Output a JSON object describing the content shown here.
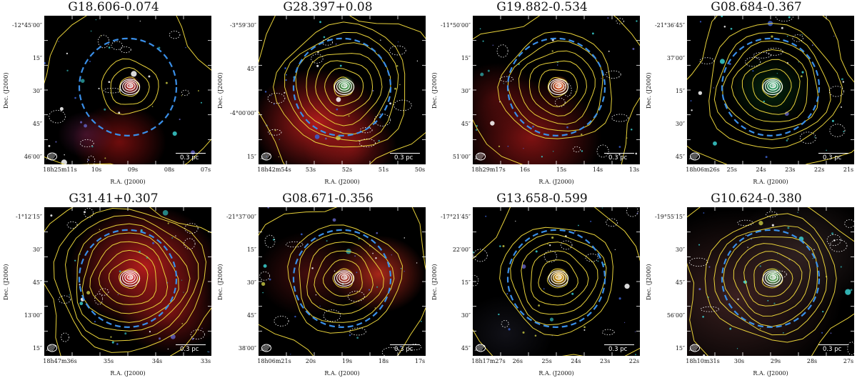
{
  "figure": {
    "dec_axis_label": "Dec. (J2000)",
    "ra_axis_label": "R.A. (J2000)",
    "scale_label": "0.3 pc",
    "colors": {
      "contour_yellow": "#e8d23a",
      "contour_white": "#ffffff",
      "circle_blue": "#3a8fe8",
      "frame": "#ffffff"
    }
  },
  "panels": [
    {
      "title": "G18.606-0.074",
      "dec_ticks": [
        "-12°45′00″",
        "15″",
        "30″",
        "45″",
        "46′00″"
      ],
      "ra_ticks": [
        "18h25m11s",
        "10s",
        "09s",
        "08s",
        "07s"
      ],
      "bg": "red-south"
    },
    {
      "title": "G28.397+0.08",
      "dec_ticks": [
        "-3°59′30″",
        "45″",
        "-4°00′00″",
        "15″"
      ],
      "ra_ticks": [
        "18h42m54s",
        "53s",
        "52s",
        "51s",
        "50s"
      ],
      "bg": "red-south-bright"
    },
    {
      "title": "G19.882-0.534",
      "dec_ticks": [
        "-11°50′00″",
        "15″",
        "30″",
        "45″",
        "51′00″"
      ],
      "ra_ticks": [
        "18h29m17s",
        "16s",
        "15s",
        "14s",
        "13s"
      ],
      "bg": "red-south-source"
    },
    {
      "title": "G08.684-0.367",
      "dec_ticks": [
        "-21°36′45″",
        "37′00″",
        "15″",
        "30″",
        "45″"
      ],
      "ra_ticks": [
        "18h06m26s",
        "25s",
        "24s",
        "23s",
        "22s",
        "21s"
      ],
      "bg": "dark-green"
    },
    {
      "title": "G31.41+0.307",
      "dec_ticks": [
        "-1°12′15″",
        "30″",
        "45″",
        "13′00″",
        "15″"
      ],
      "ra_ticks": [
        "18h47m36s",
        "35s",
        "34s",
        "33s"
      ],
      "bg": "red-center"
    },
    {
      "title": "G08.671-0.356",
      "dec_ticks": [
        "-21°37′00″",
        "15″",
        "30″",
        "45″",
        "38′00″"
      ],
      "ra_ticks": [
        "18h06m21s",
        "20s",
        "19s",
        "18s",
        "17s"
      ],
      "bg": "red-east"
    },
    {
      "title": "G13.658-0.599",
      "dec_ticks": [
        "-17°21′45″",
        "22′00″",
        "15″",
        "30″",
        "45″"
      ],
      "ra_ticks": [
        "18h17m27s",
        "26s",
        "25s",
        "24s",
        "23s",
        "22s"
      ],
      "bg": "dark-source"
    },
    {
      "title": "G10.624-0.380",
      "dec_ticks": [
        "-19°55′15″",
        "30″",
        "45″",
        "56′00″",
        "15″"
      ],
      "ra_ticks": [
        "18h10m31s",
        "30s",
        "29s",
        "28s",
        "27s"
      ],
      "bg": "brown-diffuse"
    }
  ]
}
